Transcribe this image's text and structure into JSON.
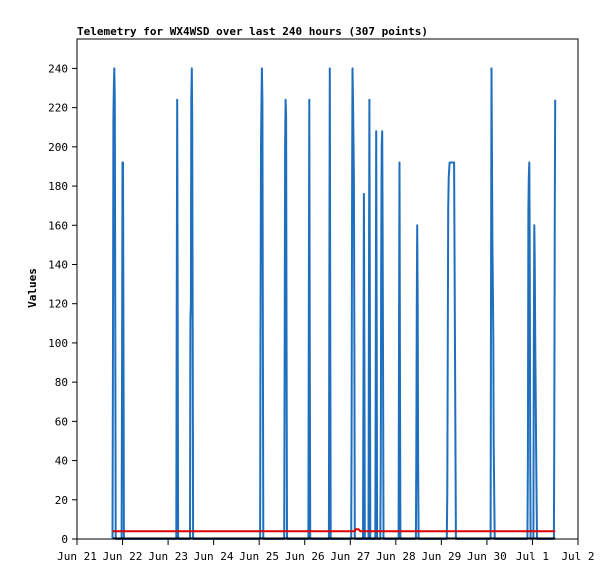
{
  "chart_data": {
    "type": "line",
    "title": "Telemetry for WX4WSD over last 240 hours (307 points)",
    "xlabel": "",
    "ylabel": "Values",
    "x_tick_labels": [
      "Jun 21",
      "Jun 22",
      "Jun 23",
      "Jun 24",
      "Jun 25",
      "Jun 26",
      "Jun 27",
      "Jun 28",
      "Jun 29",
      "Jun 30",
      "Jul 1",
      "Jul 2"
    ],
    "y_ticks": [
      0,
      20,
      40,
      60,
      80,
      100,
      120,
      140,
      160,
      180,
      200,
      220,
      240
    ],
    "ylim": [
      0,
      255
    ],
    "xlim_days": [
      0,
      11
    ],
    "grid": false,
    "legend": "none",
    "series": [
      {
        "color": "#1f6fbf",
        "points": [
          [
            0.78,
            0
          ],
          [
            0.79,
            104
          ],
          [
            0.8,
            215
          ],
          [
            0.81,
            232
          ],
          [
            0.82,
            240
          ],
          [
            0.83,
            224
          ],
          [
            0.84,
            104
          ],
          [
            0.85,
            0
          ],
          [
            0.98,
            0
          ],
          [
            0.99,
            96
          ],
          [
            1.0,
            192
          ],
          [
            1.01,
            192
          ],
          [
            1.02,
            96
          ],
          [
            1.03,
            0
          ],
          [
            2.18,
            0
          ],
          [
            2.19,
            112
          ],
          [
            2.2,
            224
          ],
          [
            2.21,
            112
          ],
          [
            2.22,
            0
          ],
          [
            2.48,
            0
          ],
          [
            2.49,
            112
          ],
          [
            2.5,
            120
          ],
          [
            2.51,
            224
          ],
          [
            2.52,
            240
          ],
          [
            2.53,
            216
          ],
          [
            2.54,
            104
          ],
          [
            2.55,
            0
          ],
          [
            4.02,
            0
          ],
          [
            4.03,
            104
          ],
          [
            4.04,
            200
          ],
          [
            4.05,
            224
          ],
          [
            4.06,
            240
          ],
          [
            4.07,
            224
          ],
          [
            4.08,
            120
          ],
          [
            4.09,
            0
          ],
          [
            4.55,
            0
          ],
          [
            4.56,
            104
          ],
          [
            4.57,
            200
          ],
          [
            4.58,
            224
          ],
          [
            4.59,
            216
          ],
          [
            4.6,
            112
          ],
          [
            4.61,
            0
          ],
          [
            5.08,
            0
          ],
          [
            5.09,
            112
          ],
          [
            5.1,
            224
          ],
          [
            5.11,
            112
          ],
          [
            5.12,
            0
          ],
          [
            5.53,
            0
          ],
          [
            5.54,
            120
          ],
          [
            5.55,
            240
          ],
          [
            5.56,
            120
          ],
          [
            5.57,
            0
          ],
          [
            6.02,
            0
          ],
          [
            6.03,
            56
          ],
          [
            6.04,
            180
          ],
          [
            6.05,
            240
          ],
          [
            6.06,
            224
          ],
          [
            6.08,
            184
          ],
          [
            6.09,
            96
          ],
          [
            6.1,
            0
          ],
          [
            6.28,
            0
          ],
          [
            6.29,
            88
          ],
          [
            6.3,
            176
          ],
          [
            6.31,
            88
          ],
          [
            6.32,
            0
          ],
          [
            6.4,
            0
          ],
          [
            6.41,
            112
          ],
          [
            6.42,
            224
          ],
          [
            6.43,
            112
          ],
          [
            6.44,
            0
          ],
          [
            6.55,
            0
          ],
          [
            6.56,
            104
          ],
          [
            6.57,
            208
          ],
          [
            6.58,
            104
          ],
          [
            6.59,
            0
          ],
          [
            6.66,
            0
          ],
          [
            6.67,
            40
          ],
          [
            6.68,
            144
          ],
          [
            6.69,
            200
          ],
          [
            6.7,
            208
          ],
          [
            6.71,
            160
          ],
          [
            6.72,
            80
          ],
          [
            6.73,
            0
          ],
          [
            7.06,
            0
          ],
          [
            7.07,
            96
          ],
          [
            7.08,
            192
          ],
          [
            7.09,
            96
          ],
          [
            7.1,
            0
          ],
          [
            7.44,
            0
          ],
          [
            7.45,
            40
          ],
          [
            7.46,
            120
          ],
          [
            7.47,
            160
          ],
          [
            7.48,
            120
          ],
          [
            7.49,
            40
          ],
          [
            7.5,
            0
          ],
          [
            8.12,
            0
          ],
          [
            8.13,
            24
          ],
          [
            8.15,
            168
          ],
          [
            8.16,
            184
          ],
          [
            8.18,
            192
          ],
          [
            8.26,
            192
          ],
          [
            8.28,
            192
          ],
          [
            8.3,
            96
          ],
          [
            8.32,
            0
          ],
          [
            9.08,
            0
          ],
          [
            9.09,
            120
          ],
          [
            9.1,
            240
          ],
          [
            9.11,
            200
          ],
          [
            9.12,
            152
          ],
          [
            9.14,
            104
          ],
          [
            9.15,
            48
          ],
          [
            9.17,
            0
          ],
          [
            9.89,
            0
          ],
          [
            9.9,
            40
          ],
          [
            9.91,
            168
          ],
          [
            9.92,
            184
          ],
          [
            9.93,
            192
          ],
          [
            9.94,
            152
          ],
          [
            9.95,
            48
          ],
          [
            9.96,
            0
          ],
          [
            10.02,
            0
          ],
          [
            10.03,
            96
          ],
          [
            10.04,
            160
          ],
          [
            10.05,
            144
          ],
          [
            10.06,
            104
          ],
          [
            10.08,
            48
          ],
          [
            10.1,
            0
          ],
          [
            10.47,
            0
          ],
          [
            10.48,
            56
          ],
          [
            10.49,
            168
          ],
          [
            10.5,
            224
          ]
        ]
      },
      {
        "color": "#dd0000",
        "points": [
          [
            0.78,
            4
          ],
          [
            6.1,
            4
          ],
          [
            6.12,
            5
          ],
          [
            6.18,
            5
          ],
          [
            6.22,
            4
          ],
          [
            10.5,
            4
          ]
        ]
      }
    ]
  }
}
